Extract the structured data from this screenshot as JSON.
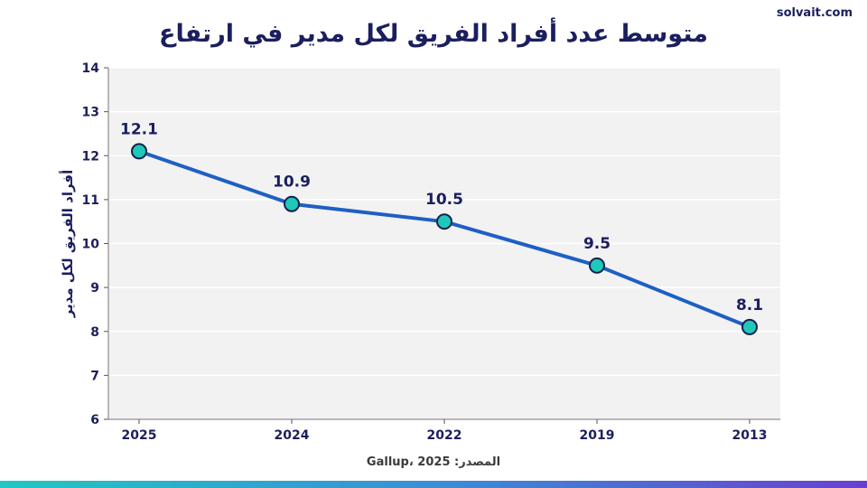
{
  "brand": "solvait.com",
  "source": "المصدر: Gallup، 2025",
  "chart_data": {
    "type": "line",
    "title": "متوسط عدد أفراد الفريق لكل مدير في ارتفاع",
    "ylabel": "أفراد الفريق لكل مدير",
    "xlabel": "",
    "categories": [
      "2025",
      "2024",
      "2022",
      "2019",
      "2013"
    ],
    "values": [
      12.1,
      10.9,
      10.5,
      9.5,
      8.1
    ],
    "data_labels": [
      "12.1",
      "10.9",
      "10.5",
      "9.5",
      "8.1"
    ],
    "ylim": [
      6,
      14
    ],
    "yticks": [
      "6",
      "7",
      "8",
      "9",
      "10",
      "11",
      "12",
      "13",
      "14"
    ],
    "grid": true,
    "colors": {
      "line": "#1f5fc4",
      "marker": "#1fc8b8",
      "marker_edge": "#14214f",
      "text": "#1b1f5e",
      "plot_bg": "#f2f2f2"
    }
  }
}
